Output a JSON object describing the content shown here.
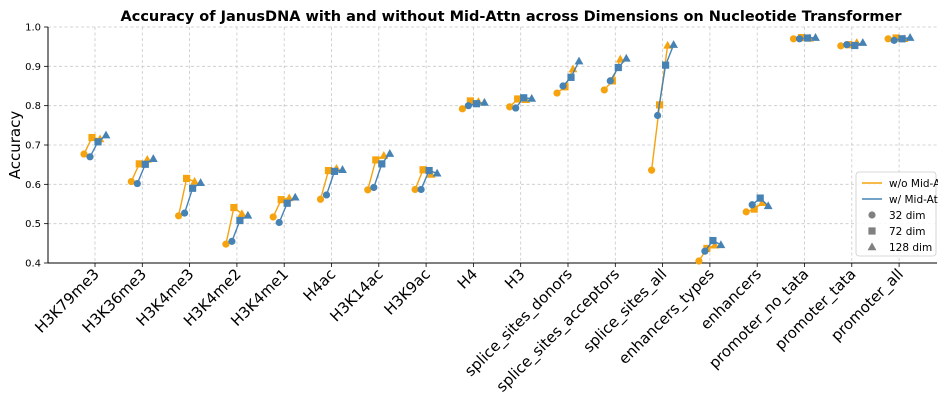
{
  "chart_data": {
    "type": "line",
    "title": "Accuracy of JanusDNA with and without Mid-Attn across Dimensions on Nucleotide Transformer",
    "xlabel": "",
    "ylabel": "Accuracy",
    "ylim": [
      0.4,
      1.0
    ],
    "yticks": [
      "0.4",
      "0.5",
      "0.6",
      "0.7",
      "0.8",
      "0.9",
      "1.0"
    ],
    "grid": true,
    "legend_position": "right",
    "categories": [
      "H3K79me3",
      "H3K36me3",
      "H3K4me3",
      "H3K4me2",
      "H3K4me1",
      "H4ac",
      "H3K14ac",
      "H3K9ac",
      "H4",
      "H3",
      "splice_sites_donors",
      "splice_sites_acceptors",
      "splice_sites_all",
      "enhancers_types",
      "enhancers",
      "promoter_no_tata",
      "promoter_tata",
      "promoter_all"
    ],
    "dimensions": [
      "32 dim",
      "72 dim",
      "128 dim"
    ],
    "series": [
      {
        "name": "w/o Mid-Attn",
        "color": "#f5a30f",
        "values": [
          [
            0.677,
            0.719,
            0.715
          ],
          [
            0.607,
            0.652,
            0.663
          ],
          [
            0.52,
            0.615,
            0.607
          ],
          [
            0.448,
            0.541,
            0.525
          ],
          [
            0.517,
            0.561,
            0.565
          ],
          [
            0.562,
            0.635,
            0.64
          ],
          [
            0.586,
            0.662,
            0.673
          ],
          [
            0.587,
            0.637,
            0.625
          ],
          [
            0.792,
            0.812,
            0.81
          ],
          [
            0.797,
            0.817,
            0.815
          ],
          [
            0.832,
            0.848,
            0.893
          ],
          [
            0.84,
            0.863,
            0.918
          ],
          [
            0.636,
            0.802,
            0.953
          ],
          [
            0.405,
            0.437,
            0.445
          ],
          [
            0.53,
            0.537,
            0.553
          ],
          [
            0.97,
            0.973,
            0.971
          ],
          [
            0.952,
            0.955,
            0.96
          ],
          [
            0.97,
            0.972,
            0.97
          ]
        ]
      },
      {
        "name": "w/ Mid-Attn",
        "color": "#4682b4",
        "values": [
          [
            0.67,
            0.708,
            0.725
          ],
          [
            0.602,
            0.651,
            0.665
          ],
          [
            0.527,
            0.59,
            0.604
          ],
          [
            0.455,
            0.508,
            0.521
          ],
          [
            0.503,
            0.552,
            0.567
          ],
          [
            0.573,
            0.633,
            0.637
          ],
          [
            0.592,
            0.652,
            0.678
          ],
          [
            0.587,
            0.635,
            0.628
          ],
          [
            0.8,
            0.805,
            0.808
          ],
          [
            0.794,
            0.82,
            0.818
          ],
          [
            0.85,
            0.872,
            0.913
          ],
          [
            0.863,
            0.897,
            0.92
          ],
          [
            0.775,
            0.903,
            0.955
          ],
          [
            0.43,
            0.457,
            0.446
          ],
          [
            0.548,
            0.565,
            0.545
          ],
          [
            0.97,
            0.972,
            0.973
          ],
          [
            0.955,
            0.953,
            0.96
          ],
          [
            0.966,
            0.97,
            0.973
          ]
        ]
      }
    ],
    "legend": [
      {
        "label": "w/o Mid-Attn",
        "kind": "line",
        "color": "#f5a30f"
      },
      {
        "label": "w/ Mid-Attn",
        "kind": "line",
        "color": "#4682b4"
      },
      {
        "label": "32 dim",
        "kind": "marker",
        "marker": "circle",
        "color": "#808080"
      },
      {
        "label": "72 dim",
        "kind": "marker",
        "marker": "square",
        "color": "#808080"
      },
      {
        "label": "128 dim",
        "kind": "marker",
        "marker": "triangle",
        "color": "#808080"
      }
    ]
  }
}
